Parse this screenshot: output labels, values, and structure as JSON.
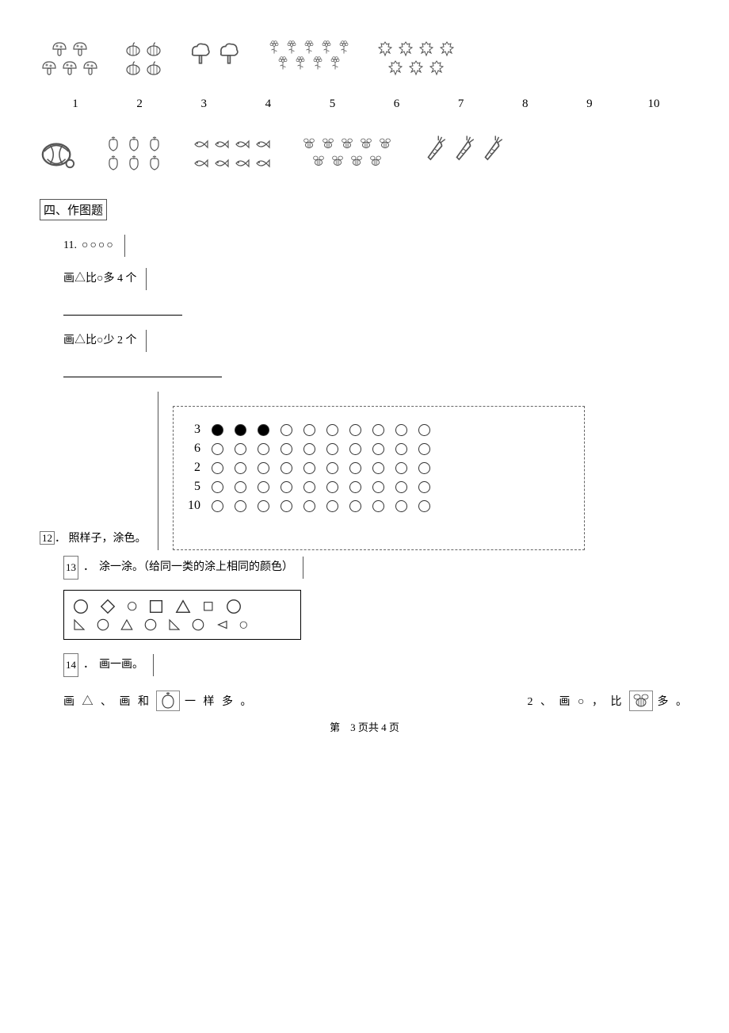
{
  "top_groups": [
    {
      "name": "mushrooms",
      "count": 5,
      "rows": [
        2,
        3
      ],
      "size": 24
    },
    {
      "name": "pumpkins",
      "count": 4,
      "rows": [
        2,
        2
      ],
      "size": 24
    },
    {
      "name": "trees",
      "count": 2,
      "rows": [
        2
      ],
      "size": 34
    },
    {
      "name": "flowers",
      "count": 9,
      "rows": [
        5,
        4
      ],
      "size": 20
    },
    {
      "name": "leaves",
      "count": 7,
      "rows": [
        4,
        3
      ],
      "size": 24
    }
  ],
  "number_row": [
    "1",
    "2",
    "3",
    "4",
    "5",
    "6",
    "7",
    "8",
    "9",
    "10"
  ],
  "bottom_groups": [
    {
      "name": "watermelon",
      "count": 1,
      "rows": [
        1
      ],
      "size": 46
    },
    {
      "name": "apples",
      "count": 6,
      "rows": [
        3,
        3
      ],
      "size": 24
    },
    {
      "name": "fish",
      "count": 8,
      "rows": [
        4,
        4
      ],
      "size": 24
    },
    {
      "name": "bees",
      "count": 9,
      "rows": [
        5,
        4
      ],
      "size": 22
    },
    {
      "name": "carrots",
      "count": 3,
      "rows": [
        3
      ],
      "size": 34
    }
  ],
  "section4_title": "四、作图题",
  "q11": {
    "num": "11.",
    "circles": "○○○○",
    "line1": "画△比○多 4 个",
    "line2": "画△比○少 2 个"
  },
  "q12": {
    "num": "12",
    "dot": "．",
    "label": "照样子，涂色。",
    "rows": [
      {
        "n": "3",
        "filled": 3,
        "total": 10
      },
      {
        "n": "6",
        "filled": 0,
        "total": 10
      },
      {
        "n": "2",
        "filled": 0,
        "total": 10
      },
      {
        "n": "5",
        "filled": 0,
        "total": 10
      },
      {
        "n": "10",
        "filled": 0,
        "total": 10
      }
    ]
  },
  "q13": {
    "num": "13",
    "dot": "．",
    "label": "涂一涂。（给同一类的涂上相同的颜色）"
  },
  "q14": {
    "num": "14",
    "dot": "．",
    "label": "画一画。",
    "left_text_pre": "画 △ 、 画 和",
    "left_text_post": "一 样 多 。",
    "right_text_pre": "2 、 画 ○ ， 比",
    "right_text_post": "多 。"
  },
  "footer": {
    "pre": "第",
    "mid": "3 页共 4 页"
  }
}
